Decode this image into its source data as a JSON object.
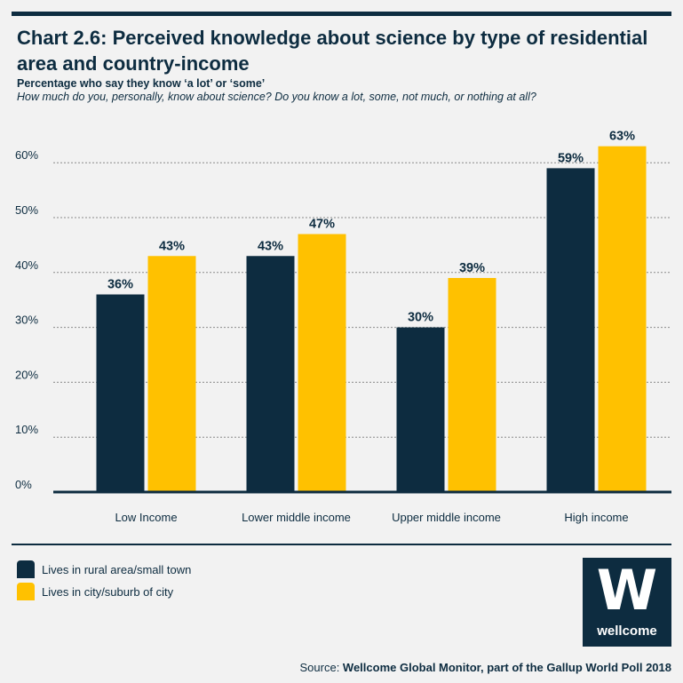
{
  "header": {
    "title": "Chart 2.6: Perceived knowledge about science by type of residential area and country-income",
    "subtitle": "Percentage who say they know ‘a lot’ or ‘some’",
    "question": "How much do you, personally, know about science? Do you know a lot, some, not much, or nothing at all?"
  },
  "chart_data": {
    "type": "bar",
    "categories": [
      "Low Income",
      "Lower middle income",
      "Upper middle income",
      "High income"
    ],
    "series": [
      {
        "name": "Lives in rural area/small town",
        "values": [
          36,
          43,
          30,
          59
        ],
        "labels": [
          "36%",
          "43%",
          "30%",
          "59%"
        ],
        "color": "#0d2c40"
      },
      {
        "name": "Lives in city/suburb of city",
        "values": [
          43,
          47,
          39,
          63
        ],
        "labels": [
          "43%",
          "47%",
          "39%",
          "63%"
        ],
        "color": "#ffc100"
      }
    ],
    "yticks": [
      0,
      10,
      20,
      30,
      40,
      50,
      60
    ],
    "ytick_labels": [
      "0%",
      "10%",
      "20%",
      "30%",
      "40%",
      "50%",
      "60%"
    ],
    "ylim": [
      0,
      63
    ],
    "grid": "dotted horizontal",
    "legend_position": "bottom-left"
  },
  "legend": {
    "items": [
      {
        "label": "Lives in rural area/small town",
        "color": "#0d2c40"
      },
      {
        "label": "Lives in city/suburb of city",
        "color": "#ffc100"
      }
    ]
  },
  "logo": {
    "mark": "W",
    "word": "wellcome"
  },
  "source": {
    "prefix": "Source: ",
    "text": "Wellcome Global Monitor, part of the Gallup World Poll 2018"
  },
  "colors": {
    "navy": "#0d2c40",
    "yellow": "#ffc100",
    "grid": "#8a8a8a"
  }
}
